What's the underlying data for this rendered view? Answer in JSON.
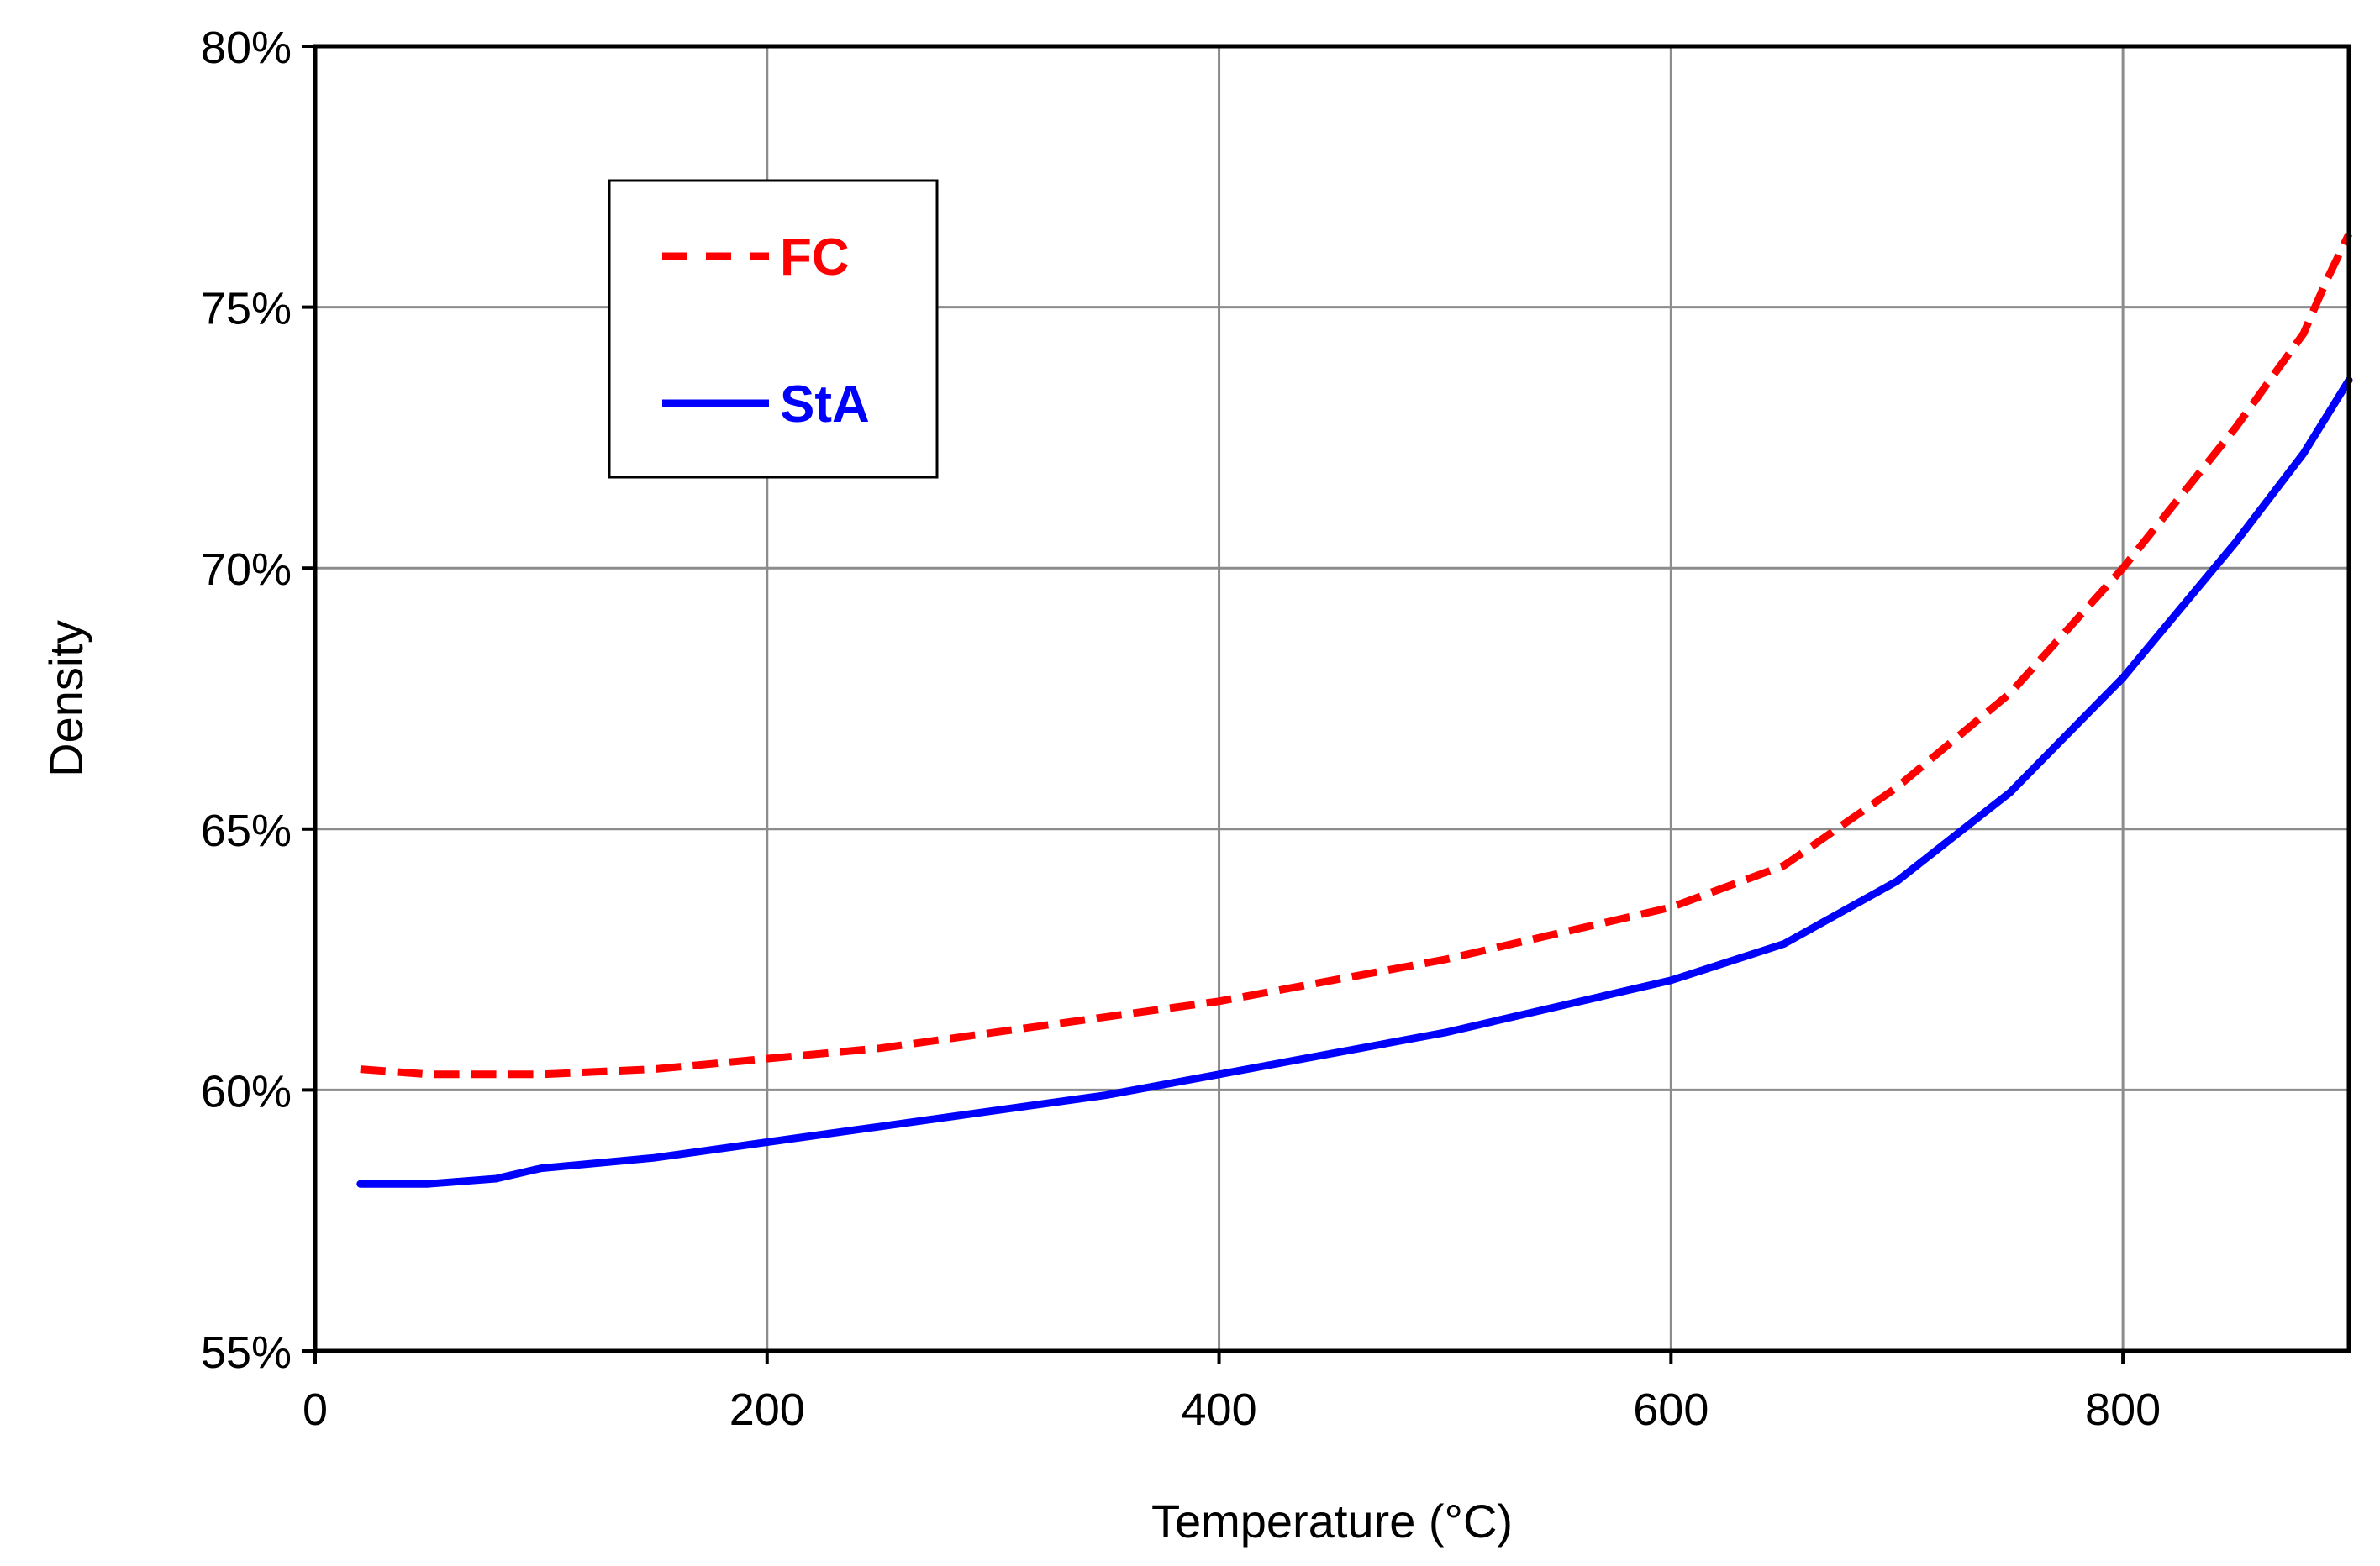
{
  "chart_data": {
    "type": "line",
    "xlabel": "Temperature (°C)",
    "ylabel": "Density",
    "xlim": [
      0,
      900
    ],
    "ylim": [
      0.55,
      0.8
    ],
    "x_ticks": [
      0,
      200,
      400,
      600,
      800
    ],
    "x_tick_labels": [
      "0",
      "200",
      "400",
      "600",
      "800"
    ],
    "y_ticks": [
      0.55,
      0.6,
      0.65,
      0.7,
      0.75,
      0.8
    ],
    "y_tick_labels": [
      "55%",
      "60%",
      "65%",
      "70%",
      "75%",
      "80%"
    ],
    "grid": true,
    "legend": {
      "placement": "top-left"
    },
    "series": [
      {
        "name": "FC",
        "color": "#ff0000",
        "style": "dashed",
        "x": [
          20,
          50,
          80,
          100,
          150,
          200,
          250,
          300,
          350,
          400,
          450,
          500,
          550,
          600,
          650,
          700,
          750,
          800,
          850,
          880,
          890,
          900
        ],
        "y": [
          0.604,
          0.603,
          0.603,
          0.603,
          0.604,
          0.606,
          0.608,
          0.611,
          0.614,
          0.617,
          0.621,
          0.625,
          0.63,
          0.635,
          0.643,
          0.658,
          0.676,
          0.7,
          0.727,
          0.745,
          0.755,
          0.764
        ]
      },
      {
        "name": "StA",
        "color": "#0000ff",
        "style": "solid",
        "x": [
          20,
          50,
          80,
          100,
          150,
          200,
          250,
          300,
          350,
          400,
          450,
          500,
          550,
          600,
          650,
          700,
          750,
          800,
          850,
          880,
          900
        ],
        "y": [
          0.582,
          0.582,
          0.583,
          0.585,
          0.587,
          0.59,
          0.593,
          0.596,
          0.599,
          0.603,
          0.607,
          0.611,
          0.616,
          0.621,
          0.628,
          0.64,
          0.657,
          0.679,
          0.705,
          0.722,
          0.736
        ]
      }
    ]
  }
}
